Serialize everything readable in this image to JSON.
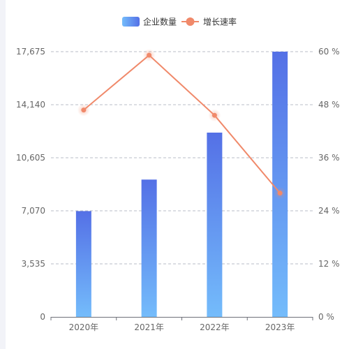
{
  "chart_data": {
    "type": "bar",
    "categories": [
      "2020年",
      "2021年",
      "2022年",
      "2023年"
    ],
    "y_left": {
      "ticks": [
        "0",
        "3,535",
        "7,070",
        "10,605",
        "14,140",
        "17,675"
      ],
      "ylim": [
        0,
        17675
      ]
    },
    "y_right": {
      "ticks": [
        "0 %",
        "12 %",
        "24 %",
        "36 %",
        "48 %",
        "60 %"
      ],
      "ylim": [
        0,
        60
      ]
    },
    "series": [
      {
        "name": "企业数量",
        "type": "bar",
        "axis": "left",
        "values": [
          7050,
          9150,
          12280,
          17675
        ],
        "color_top": "#5470e6",
        "color_bottom": "#74bcfb"
      },
      {
        "name": "增长速率",
        "type": "line",
        "axis": "right",
        "values": [
          46.8,
          59.2,
          45.6,
          28.0
        ],
        "color": "#f0896a"
      }
    ],
    "grid": true,
    "legend_position": "top-center",
    "grid_color": "#b8bcc7"
  }
}
